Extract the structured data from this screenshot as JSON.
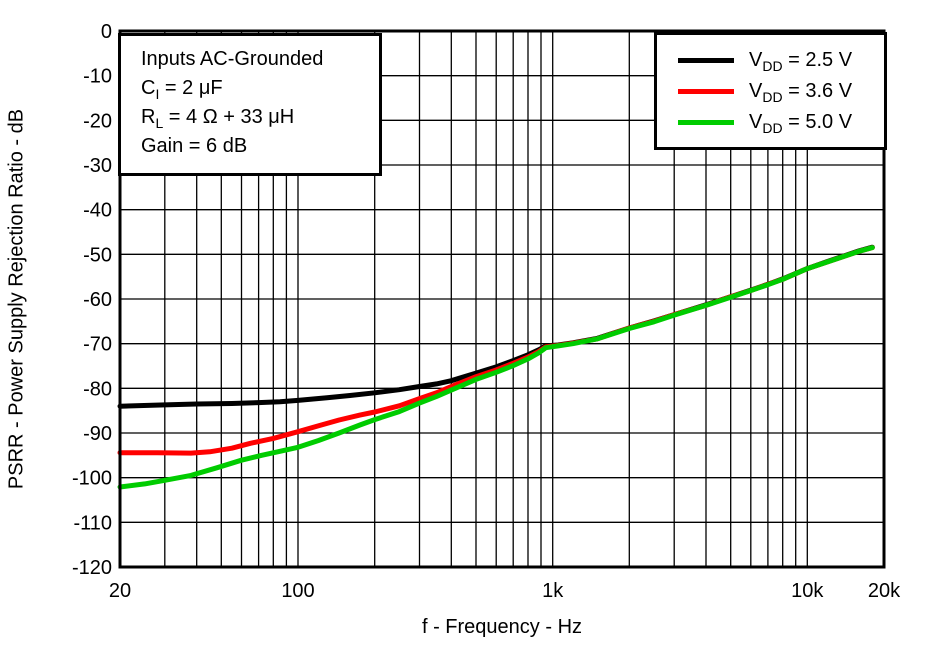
{
  "chart_data": {
    "type": "line",
    "title": "",
    "xlabel": "f - Frequency - Hz",
    "ylabel": "PSRR - Power Supply Rejection Ratio - dB",
    "x_scale": "log",
    "xlim": [
      20,
      20000
    ],
    "ylim": [
      -120,
      0
    ],
    "grid": "full log grid, black lines, 10 dB horizontal spacing",
    "legend_position": "top-right",
    "axis_color": "#000000",
    "background_color": "#ffffff",
    "y_ticks": [
      {
        "value": 0,
        "label": "0"
      },
      {
        "value": -10,
        "label": "-10"
      },
      {
        "value": -20,
        "label": "-20"
      },
      {
        "value": -30,
        "label": "-30"
      },
      {
        "value": -40,
        "label": "-40"
      },
      {
        "value": -50,
        "label": "-50"
      },
      {
        "value": -60,
        "label": "-60"
      },
      {
        "value": -70,
        "label": "-70"
      },
      {
        "value": -80,
        "label": "-80"
      },
      {
        "value": -90,
        "label": "-90"
      },
      {
        "value": -100,
        "label": "-100"
      },
      {
        "value": -110,
        "label": "-110"
      },
      {
        "value": -120,
        "label": "-120"
      }
    ],
    "x_tick_labels": [
      {
        "value": 20,
        "label": "20"
      },
      {
        "value": 100,
        "label": "100"
      },
      {
        "value": 1000,
        "label": "1k"
      },
      {
        "value": 10000,
        "label": "10k"
      },
      {
        "value": 20000,
        "label": "20k"
      }
    ],
    "annotation": {
      "lines": [
        "Inputs AC-Grounded",
        "C_{I} = 2 μF",
        "R_{L} = 4 Ω + 33 μH",
        "Gain = 6 dB"
      ]
    },
    "series": [
      {
        "id": "vdd-2-5v",
        "name": "V_{DD} = 2.5 V",
        "color": "#000000",
        "points": [
          [
            20,
            -84.0
          ],
          [
            30,
            -83.7
          ],
          [
            40,
            -83.5
          ],
          [
            55,
            -83.4
          ],
          [
            70,
            -83.2
          ],
          [
            85,
            -83.0
          ],
          [
            100,
            -82.7
          ],
          [
            130,
            -82.1
          ],
          [
            160,
            -81.6
          ],
          [
            200,
            -81.0
          ],
          [
            250,
            -80.3
          ],
          [
            300,
            -79.6
          ],
          [
            350,
            -79.0
          ],
          [
            400,
            -78.3
          ],
          [
            500,
            -76.6
          ],
          [
            600,
            -75.2
          ],
          [
            700,
            -73.8
          ],
          [
            800,
            -72.5
          ],
          [
            880,
            -71.4
          ],
          [
            940,
            -70.5
          ],
          [
            1050,
            -70.3
          ],
          [
            1200,
            -69.8
          ],
          [
            1500,
            -68.8
          ],
          [
            2000,
            -66.5
          ],
          [
            2500,
            -64.9
          ],
          [
            3000,
            -63.5
          ],
          [
            4000,
            -61.3
          ],
          [
            5000,
            -59.5
          ],
          [
            6000,
            -58.0
          ],
          [
            7000,
            -56.7
          ],
          [
            8000,
            -55.5
          ],
          [
            10000,
            -53.2
          ],
          [
            12000,
            -51.6
          ],
          [
            14000,
            -50.3
          ],
          [
            16000,
            -49.2
          ],
          [
            18000,
            -48.4
          ]
        ]
      },
      {
        "id": "vdd-3-6v",
        "name": "V_{DD} = 3.6 V",
        "color": "#ff0000",
        "points": [
          [
            20,
            -94.4
          ],
          [
            28,
            -94.4
          ],
          [
            38,
            -94.5
          ],
          [
            45,
            -94.2
          ],
          [
            55,
            -93.4
          ],
          [
            65,
            -92.3
          ],
          [
            80,
            -91.2
          ],
          [
            100,
            -89.7
          ],
          [
            120,
            -88.4
          ],
          [
            145,
            -87.1
          ],
          [
            175,
            -86.0
          ],
          [
            200,
            -85.3
          ],
          [
            250,
            -83.9
          ],
          [
            300,
            -82.3
          ],
          [
            350,
            -81.0
          ],
          [
            400,
            -79.6
          ],
          [
            500,
            -77.4
          ],
          [
            600,
            -75.9
          ],
          [
            700,
            -74.4
          ],
          [
            800,
            -73.0
          ],
          [
            880,
            -71.8
          ],
          [
            940,
            -70.7
          ],
          [
            1050,
            -70.4
          ],
          [
            1200,
            -69.9
          ],
          [
            1500,
            -68.9
          ],
          [
            2000,
            -66.5
          ],
          [
            2500,
            -65.0
          ],
          [
            3000,
            -63.5
          ],
          [
            4000,
            -61.4
          ],
          [
            5000,
            -59.5
          ],
          [
            6000,
            -58.1
          ],
          [
            7000,
            -56.7
          ],
          [
            8000,
            -55.6
          ],
          [
            10000,
            -53.2
          ],
          [
            12000,
            -51.7
          ],
          [
            14000,
            -50.4
          ],
          [
            16000,
            -49.3
          ],
          [
            18000,
            -48.5
          ]
        ]
      },
      {
        "id": "vdd-5-0v",
        "name": "V_{DD} = 5.0 V",
        "color": "#00cc00",
        "points": [
          [
            20,
            -102.1
          ],
          [
            25,
            -101.4
          ],
          [
            30,
            -100.6
          ],
          [
            38,
            -99.5
          ],
          [
            48,
            -97.8
          ],
          [
            60,
            -96.1
          ],
          [
            72,
            -95.0
          ],
          [
            85,
            -94.1
          ],
          [
            100,
            -93.2
          ],
          [
            120,
            -91.7
          ],
          [
            145,
            -90.0
          ],
          [
            175,
            -88.2
          ],
          [
            200,
            -87.0
          ],
          [
            250,
            -85.2
          ],
          [
            300,
            -83.3
          ],
          [
            350,
            -81.8
          ],
          [
            400,
            -80.4
          ],
          [
            500,
            -78.0
          ],
          [
            600,
            -76.4
          ],
          [
            700,
            -74.9
          ],
          [
            800,
            -73.4
          ],
          [
            880,
            -72.1
          ],
          [
            940,
            -70.9
          ],
          [
            1050,
            -70.5
          ],
          [
            1200,
            -70.0
          ],
          [
            1500,
            -68.9
          ],
          [
            2000,
            -66.6
          ],
          [
            2500,
            -65.1
          ],
          [
            3000,
            -63.6
          ],
          [
            4000,
            -61.4
          ],
          [
            5000,
            -59.6
          ],
          [
            6000,
            -58.1
          ],
          [
            7000,
            -56.8
          ],
          [
            8000,
            -55.6
          ],
          [
            10000,
            -53.2
          ],
          [
            12000,
            -51.7
          ],
          [
            14000,
            -50.4
          ],
          [
            16000,
            -49.3
          ],
          [
            18000,
            -48.5
          ]
        ]
      }
    ]
  }
}
